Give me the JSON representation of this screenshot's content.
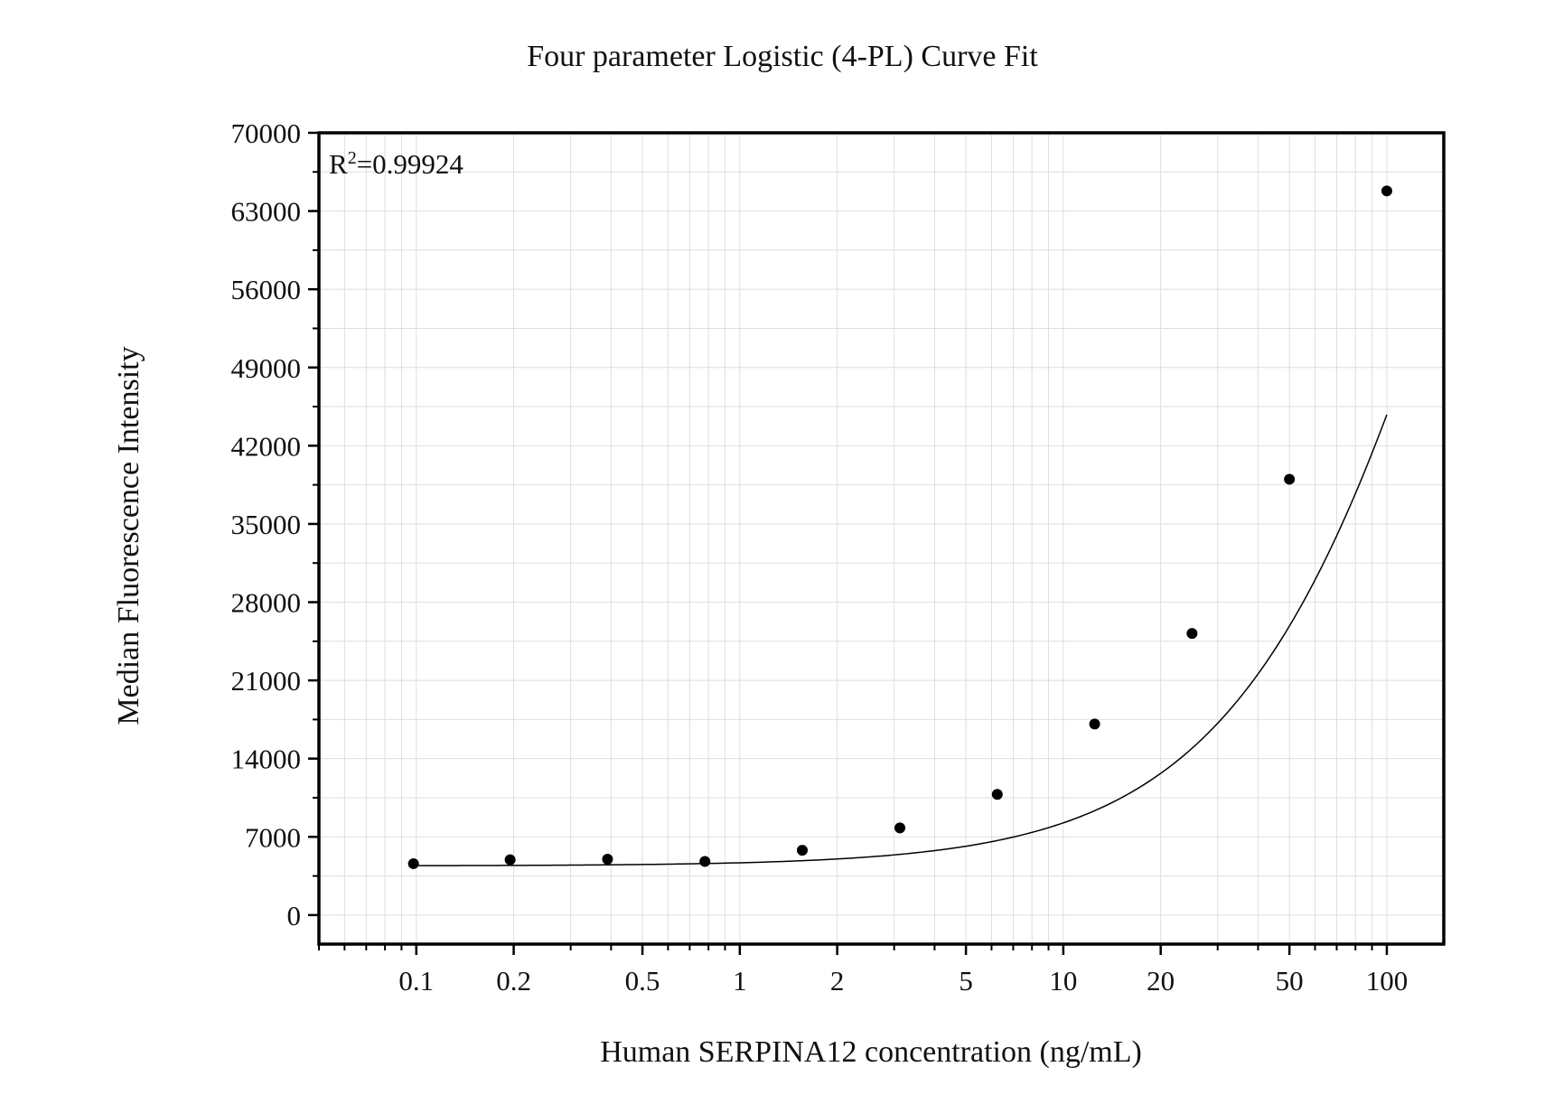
{
  "chart_data": {
    "type": "scatter",
    "title": "Four parameter Logistic (4-PL) Curve Fit",
    "xlabel": "Human SERPINA12 concentration (ng/mL)",
    "ylabel": "Median Fluorescence Intensity",
    "x_scale": "log",
    "xlim": [
      0.05,
      150
    ],
    "ylim": [
      -2600,
      70000
    ],
    "x_ticks": [
      0.1,
      0.2,
      0.5,
      1,
      2,
      5,
      10,
      20,
      50,
      100
    ],
    "x_tick_labels": [
      "0.1",
      "0.2",
      "0.5",
      "1",
      "2",
      "5",
      "10",
      "20",
      "50",
      "100"
    ],
    "y_ticks": [
      0,
      7000,
      14000,
      21000,
      28000,
      35000,
      42000,
      49000,
      56000,
      63000,
      70000
    ],
    "y_tick_labels": [
      "0",
      "7000",
      "14000",
      "21000",
      "28000",
      "35000",
      "42000",
      "49000",
      "56000",
      "63000",
      "70000"
    ],
    "grid": true,
    "annotation": {
      "base": "R",
      "sup": "2",
      "text": "=0.99924"
    },
    "series": [
      {
        "points": [
          {
            "x": 0.098,
            "y": 4600
          },
          {
            "x": 0.195,
            "y": 4950
          },
          {
            "x": 0.39,
            "y": 5000
          },
          {
            "x": 0.78,
            "y": 4800
          },
          {
            "x": 1.56,
            "y": 5800
          },
          {
            "x": 3.125,
            "y": 7800
          },
          {
            "x": 6.25,
            "y": 10800
          },
          {
            "x": 12.5,
            "y": 17100
          },
          {
            "x": 25,
            "y": 25200
          },
          {
            "x": 50,
            "y": 39000
          },
          {
            "x": 100,
            "y": 64800
          }
        ]
      }
    ],
    "fit_curve": {
      "model": "4PL",
      "A": 4400,
      "B": 1.15,
      "C": 230,
      "D": 150000,
      "x_range": [
        0.1,
        100
      ]
    },
    "colors": {
      "marker": "#000000",
      "curve": "#000000",
      "frame": "#000000",
      "grid": "#dedede"
    }
  }
}
